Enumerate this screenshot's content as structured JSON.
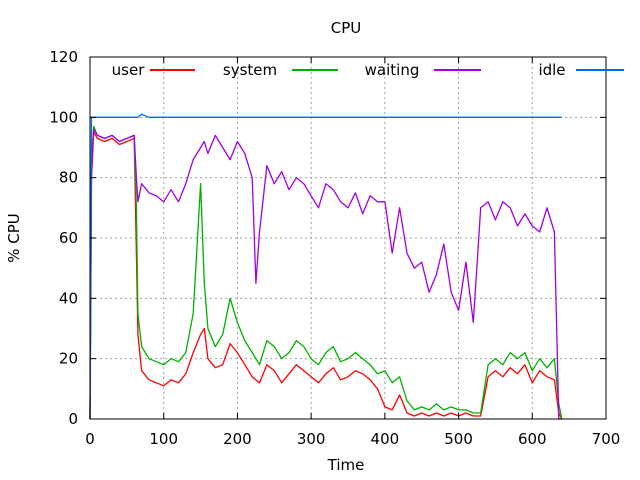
{
  "chart_data": {
    "type": "line",
    "title": "CPU",
    "xlabel": "Time",
    "ylabel": "% CPU",
    "xlim": [
      0,
      700
    ],
    "ylim": [
      0,
      120
    ],
    "x_ticks": [
      "0",
      "100",
      "200",
      "300",
      "400",
      "500",
      "600",
      "700"
    ],
    "y_ticks": [
      "0",
      "20",
      "40",
      "60",
      "80",
      "100",
      "120"
    ],
    "grid": true,
    "legend_position": "top (single row)",
    "series": [
      {
        "name": "user",
        "color": "#ff0000",
        "x": [
          0,
          2,
          5,
          10,
          20,
          30,
          40,
          50,
          60,
          63,
          65,
          70,
          80,
          90,
          100,
          110,
          120,
          130,
          140,
          150,
          155,
          160,
          170,
          180,
          190,
          200,
          210,
          220,
          230,
          240,
          250,
          260,
          270,
          280,
          290,
          300,
          310,
          320,
          330,
          340,
          350,
          360,
          370,
          380,
          390,
          400,
          410,
          420,
          430,
          440,
          450,
          460,
          470,
          480,
          490,
          500,
          510,
          520,
          530,
          540,
          550,
          560,
          570,
          580,
          590,
          600,
          610,
          620,
          630,
          636,
          640
        ],
        "values": [
          0,
          80,
          95,
          93,
          92,
          93,
          91,
          92,
          93,
          55,
          28,
          16,
          13,
          12,
          11,
          13,
          12,
          15,
          22,
          28,
          30,
          20,
          17,
          18,
          25,
          22,
          18,
          14,
          12,
          18,
          16,
          12,
          15,
          18,
          16,
          14,
          12,
          15,
          17,
          13,
          14,
          16,
          15,
          13,
          10,
          4,
          3,
          8,
          2,
          1,
          2,
          1,
          2,
          1,
          2,
          1,
          2,
          1,
          1,
          14,
          16,
          14,
          17,
          15,
          18,
          12,
          16,
          14,
          13,
          2,
          0
        ]
      },
      {
        "name": "system",
        "color": "#00b000",
        "x": [
          0,
          2,
          5,
          10,
          20,
          30,
          40,
          50,
          60,
          63,
          65,
          70,
          80,
          90,
          100,
          110,
          120,
          130,
          140,
          150,
          155,
          160,
          170,
          180,
          190,
          200,
          210,
          220,
          230,
          240,
          250,
          260,
          270,
          280,
          290,
          300,
          310,
          320,
          330,
          340,
          350,
          360,
          370,
          380,
          390,
          400,
          410,
          420,
          430,
          440,
          450,
          460,
          470,
          480,
          490,
          500,
          510,
          520,
          530,
          540,
          550,
          560,
          570,
          580,
          590,
          600,
          610,
          620,
          630,
          636,
          640
        ],
        "values": [
          0,
          85,
          97,
          94,
          93,
          94,
          92,
          93,
          94,
          70,
          35,
          24,
          20,
          19,
          18,
          20,
          19,
          22,
          35,
          78,
          45,
          30,
          24,
          28,
          40,
          32,
          26,
          22,
          18,
          26,
          24,
          20,
          22,
          26,
          24,
          20,
          18,
          22,
          24,
          19,
          20,
          22,
          20,
          18,
          15,
          16,
          12,
          14,
          6,
          3,
          4,
          3,
          5,
          3,
          4,
          3,
          3,
          2,
          2,
          18,
          20,
          18,
          22,
          20,
          22,
          16,
          20,
          17,
          20,
          5,
          0
        ]
      },
      {
        "name": "waiting",
        "color": "#a000e0",
        "x": [
          0,
          2,
          5,
          10,
          20,
          30,
          40,
          50,
          60,
          63,
          65,
          70,
          80,
          90,
          100,
          110,
          120,
          130,
          140,
          150,
          155,
          160,
          170,
          180,
          190,
          200,
          210,
          220,
          225,
          230,
          240,
          250,
          260,
          270,
          280,
          290,
          300,
          310,
          320,
          330,
          340,
          350,
          360,
          370,
          380,
          390,
          400,
          410,
          420,
          430,
          440,
          450,
          460,
          470,
          480,
          490,
          500,
          510,
          520,
          530,
          540,
          550,
          560,
          570,
          580,
          590,
          600,
          610,
          620,
          630,
          636,
          640
        ],
        "values": [
          0,
          82,
          96,
          94,
          93,
          94,
          92,
          93,
          94,
          80,
          72,
          78,
          75,
          74,
          72,
          76,
          72,
          78,
          86,
          90,
          92,
          88,
          94,
          90,
          86,
          92,
          88,
          80,
          45,
          62,
          84,
          78,
          82,
          76,
          80,
          78,
          74,
          70,
          78,
          76,
          72,
          70,
          75,
          68,
          74,
          72,
          72,
          55,
          70,
          55,
          50,
          52,
          42,
          48,
          58,
          42,
          36,
          52,
          32,
          70,
          72,
          66,
          72,
          70,
          64,
          68,
          64,
          62,
          70,
          62,
          0,
          0
        ]
      },
      {
        "name": "idle",
        "color": "#0070e0",
        "x": [
          0,
          2,
          5,
          10,
          20,
          30,
          40,
          50,
          60,
          63,
          65,
          70,
          80,
          90,
          100,
          150,
          200,
          250,
          300,
          350,
          400,
          450,
          500,
          550,
          600,
          630,
          640
        ],
        "values": [
          0,
          100,
          100,
          100,
          100,
          100,
          100,
          100,
          100,
          100,
          100,
          101,
          100,
          100,
          100,
          100,
          100,
          100,
          100,
          100,
          100,
          100,
          100,
          100,
          100,
          100,
          100
        ]
      }
    ]
  }
}
